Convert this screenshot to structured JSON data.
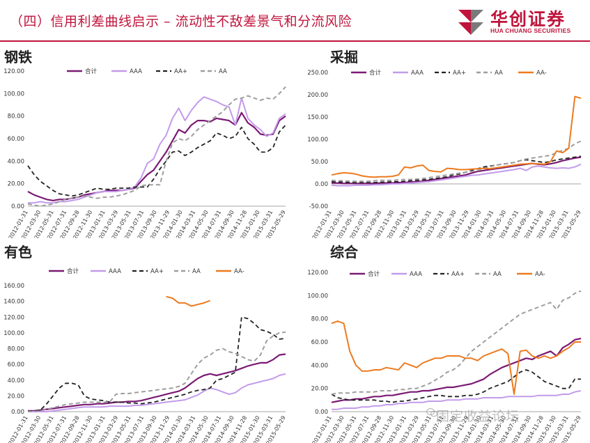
{
  "header": {
    "title": "（四）信用利差曲线启示 – 流动性不敌差景气和分流风险"
  },
  "logo": {
    "cn": "华创证券",
    "en": "HUA CHUANG SECURITIES",
    "color": "#c0143c"
  },
  "watermark": {
    "text": "固定收益论坛"
  },
  "series_styles": {
    "合计": {
      "color": "#7b1a73",
      "dash": "",
      "width": 2.2
    },
    "AAA": {
      "color": "#c39bea",
      "dash": "",
      "width": 2.0
    },
    "AA+": {
      "color": "#222222",
      "dash": "6,4",
      "width": 1.8
    },
    "AA": {
      "color": "#9e9e9e",
      "dash": "6,4",
      "width": 2.0
    },
    "AA-": {
      "color": "#ec7a1e",
      "dash": "",
      "width": 2.0
    }
  },
  "x_ticks": [
    "2012-01-31",
    "2012-03-30",
    "2012-05-31",
    "2012-07-31",
    "2012-09-28",
    "2012-11-30",
    "2013-01-31",
    "2013-03-29",
    "2013-05-31",
    "2013-07-31",
    "2013-09-30",
    "2013-11-29",
    "2014-01-30",
    "2014-03-31",
    "2014-05-30",
    "2014-07-31",
    "2014-09-30",
    "2014-11-28",
    "2015-01-30",
    "2015-03-31",
    "2015-05-29"
  ],
  "chart_data": [
    {
      "type": "line",
      "title": "钢铁",
      "ylim": [
        0,
        120
      ],
      "yticks": [
        "0.00",
        "20.00",
        "40.00",
        "60.00",
        "80.00",
        "100.00",
        "120.00"
      ],
      "legend": [
        "合计",
        "AAA",
        "AA+",
        "AA"
      ],
      "categories_count": 42,
      "series": [
        {
          "name": "合计",
          "values": [
            13,
            10,
            8,
            6,
            5,
            6,
            6,
            7,
            8,
            10,
            11,
            12,
            13,
            14,
            14,
            14,
            15,
            16,
            22,
            28,
            32,
            40,
            48,
            58,
            68,
            65,
            72,
            76,
            76,
            75,
            78,
            77,
            76,
            72,
            83,
            74,
            70,
            64,
            63,
            64,
            76,
            80
          ]
        },
        {
          "name": "AAA",
          "values": [
            3,
            3,
            4,
            3,
            3,
            4,
            4,
            5,
            6,
            8,
            10,
            12,
            13,
            13,
            13,
            14,
            15,
            17,
            25,
            38,
            42,
            55,
            63,
            78,
            87,
            76,
            85,
            92,
            97,
            95,
            93,
            90,
            88,
            72,
            96,
            78,
            72,
            68,
            62,
            65,
            78,
            82
          ]
        },
        {
          "name": "AA+",
          "values": [
            36,
            28,
            22,
            18,
            14,
            11,
            10,
            9,
            10,
            12,
            14,
            16,
            15,
            15,
            16,
            16,
            16,
            17,
            17,
            17,
            24,
            33,
            40,
            48,
            49,
            45,
            48,
            52,
            55,
            58,
            65,
            63,
            60,
            62,
            70,
            60,
            55,
            48,
            48,
            52,
            66,
            72
          ]
        },
        {
          "name": "AA",
          "values": [
            2,
            1,
            0,
            1,
            2,
            4,
            6,
            7,
            8,
            9,
            8,
            7,
            8,
            8,
            9,
            10,
            12,
            14,
            18,
            19,
            19,
            19,
            40,
            56,
            60,
            58,
            62,
            68,
            72,
            76,
            80,
            84,
            90,
            95,
            96,
            98,
            96,
            94,
            96,
            95,
            100,
            106
          ]
        }
      ]
    },
    {
      "type": "line",
      "title": "采掘",
      "ylim": [
        -50,
        250
      ],
      "yticks": [
        "-50.00",
        "0.00",
        "50.00",
        "100.00",
        "150.00",
        "200.00",
        "250.00"
      ],
      "legend": [
        "合计",
        "AAA",
        "AA+",
        "AA",
        "AA-"
      ],
      "categories_count": 42,
      "series": [
        {
          "name": "合计",
          "values": [
            2,
            2,
            1,
            1,
            1,
            1,
            1,
            1,
            2,
            2,
            2,
            3,
            3,
            4,
            5,
            6,
            8,
            10,
            12,
            14,
            16,
            18,
            20,
            24,
            28,
            30,
            32,
            34,
            36,
            38,
            40,
            42,
            44,
            46,
            44,
            43,
            45,
            48,
            52,
            55,
            58,
            60
          ]
        },
        {
          "name": "AAA",
          "values": [
            -3,
            -4,
            -4,
            -4,
            -3,
            -3,
            -3,
            -2,
            -2,
            -1,
            0,
            0,
            1,
            2,
            3,
            4,
            5,
            7,
            9,
            11,
            13,
            15,
            17,
            19,
            20,
            22,
            24,
            26,
            28,
            30,
            32,
            35,
            30,
            38,
            40,
            38,
            36,
            35,
            36,
            35,
            38,
            44
          ]
        },
        {
          "name": "AA+",
          "values": [
            5,
            4,
            4,
            3,
            3,
            3,
            3,
            3,
            4,
            4,
            5,
            5,
            6,
            7,
            8,
            9,
            10,
            12,
            14,
            16,
            20,
            22,
            26,
            30,
            34,
            38,
            40,
            42,
            44,
            46,
            48,
            52,
            54,
            52,
            50,
            48,
            50,
            54,
            56,
            58,
            60,
            62
          ]
        },
        {
          "name": "AA",
          "values": [
            8,
            7,
            7,
            6,
            6,
            6,
            6,
            7,
            8,
            8,
            8,
            9,
            10,
            10,
            11,
            12,
            14,
            16,
            18,
            20,
            22,
            24,
            26,
            28,
            30,
            34,
            38,
            42,
            44,
            46,
            48,
            52,
            56,
            58,
            60,
            62,
            64,
            70,
            75,
            80,
            90,
            96
          ]
        },
        {
          "name": "AA-",
          "values": [
            20,
            23,
            25,
            24,
            22,
            18,
            16,
            15,
            16,
            16,
            17,
            20,
            38,
            36,
            40,
            42,
            30,
            28,
            27,
            35,
            34,
            32,
            32,
            33,
            34,
            35,
            34,
            36,
            38,
            40,
            42,
            44,
            45,
            46,
            45,
            44,
            50,
            74,
            70,
            80,
            196,
            192
          ]
        }
      ]
    },
    {
      "type": "line",
      "title": "有色",
      "ylim": [
        0,
        160
      ],
      "yticks": [
        "0.00",
        "20.00",
        "40.00",
        "60.00",
        "80.00",
        "100.00",
        "120.00",
        "140.00",
        "160.00"
      ],
      "legend": [
        "合计",
        "AAA",
        "AA+",
        "AA",
        "AA-"
      ],
      "categories_count": 42,
      "series": [
        {
          "name": "合计",
          "values": [
            1,
            1,
            2,
            3,
            4,
            5,
            6,
            7,
            8,
            9,
            9,
            10,
            10,
            11,
            12,
            12,
            13,
            13,
            14,
            16,
            18,
            20,
            22,
            24,
            26,
            30,
            36,
            42,
            46,
            48,
            46,
            48,
            50,
            52,
            55,
            58,
            60,
            62,
            62,
            66,
            72,
            73
          ]
        },
        {
          "name": "AAA",
          "values": [
            0,
            0,
            0,
            0,
            1,
            2,
            3,
            4,
            5,
            6,
            6,
            6,
            6,
            7,
            7,
            7,
            7,
            8,
            8,
            9,
            10,
            11,
            12,
            13,
            14,
            15,
            18,
            21,
            26,
            30,
            28,
            25,
            22,
            24,
            30,
            34,
            36,
            38,
            40,
            42,
            46,
            48
          ]
        },
        {
          "name": "AA+",
          "values": [
            0,
            1,
            2,
            10,
            20,
            30,
            36,
            36,
            34,
            20,
            16,
            15,
            14,
            12,
            12,
            12,
            11,
            11,
            10,
            11,
            12,
            14,
            16,
            18,
            20,
            22,
            25,
            27,
            28,
            30,
            40,
            42,
            46,
            50,
            120,
            118,
            112,
            104,
            102,
            98,
            92,
            93
          ]
        },
        {
          "name": "AA",
          "values": [
            0,
            0,
            1,
            3,
            5,
            7,
            9,
            10,
            11,
            12,
            12,
            12,
            12,
            12,
            22,
            23,
            23,
            24,
            25,
            26,
            27,
            28,
            29,
            30,
            32,
            36,
            48,
            60,
            68,
            72,
            78,
            80,
            76,
            74,
            70,
            66,
            64,
            72,
            90,
            96,
            100,
            101
          ]
        },
        {
          "name": "AA-",
          "values": [
            null,
            null,
            null,
            null,
            null,
            null,
            null,
            null,
            null,
            null,
            null,
            null,
            null,
            null,
            null,
            null,
            null,
            null,
            null,
            null,
            null,
            null,
            146,
            144,
            138,
            138,
            134,
            136,
            138,
            141,
            null,
            null,
            null,
            null,
            null,
            null,
            null,
            null,
            null,
            null,
            null,
            null
          ]
        }
      ]
    },
    {
      "type": "line",
      "title": "综合",
      "ylim": [
        0,
        120
      ],
      "yticks": [
        "0.00",
        "20.00",
        "40.00",
        "60.00",
        "80.00",
        "100.00",
        "120.00"
      ],
      "legend": [
        "合计",
        "AAA",
        "AA+",
        "AA",
        "AA-"
      ],
      "categories_count": 42,
      "series": [
        {
          "name": "合计",
          "values": [
            8,
            9,
            10,
            10,
            11,
            11,
            12,
            13,
            13,
            14,
            14,
            15,
            16,
            17,
            17,
            18,
            18,
            19,
            20,
            21,
            21,
            22,
            23,
            24,
            26,
            28,
            32,
            35,
            38,
            40,
            42,
            44,
            46,
            45,
            48,
            50,
            52,
            48,
            55,
            58,
            62,
            63
          ]
        },
        {
          "name": "AAA",
          "values": [
            2,
            2,
            3,
            3,
            3,
            4,
            4,
            5,
            5,
            6,
            6,
            7,
            7,
            8,
            8,
            8,
            9,
            9,
            9,
            10,
            10,
            10,
            11,
            11,
            11,
            12,
            12,
            12,
            12,
            13,
            13,
            13,
            13,
            13,
            14,
            14,
            14,
            14,
            15,
            15,
            17,
            18
          ]
        },
        {
          "name": "AA+",
          "values": [
            15,
            12,
            11,
            10,
            10,
            10,
            10,
            10,
            9,
            9,
            8,
            9,
            9,
            10,
            11,
            12,
            13,
            14,
            14,
            13,
            13,
            13,
            14,
            14,
            15,
            17,
            20,
            22,
            24,
            26,
            30,
            34,
            36,
            34,
            30,
            26,
            24,
            22,
            20,
            20,
            28,
            28
          ]
        },
        {
          "name": "AA",
          "values": [
            15,
            16,
            16,
            16,
            17,
            17,
            17,
            17,
            18,
            18,
            18,
            19,
            19,
            20,
            20,
            22,
            24,
            27,
            30,
            34,
            36,
            40,
            46,
            52,
            56,
            60,
            64,
            68,
            72,
            76,
            80,
            84,
            86,
            88,
            90,
            92,
            94,
            88,
            96,
            98,
            102,
            104
          ]
        },
        {
          "name": "AA-",
          "values": [
            76,
            78,
            76,
            52,
            40,
            35,
            35,
            36,
            36,
            38,
            37,
            36,
            42,
            40,
            38,
            42,
            44,
            46,
            46,
            48,
            48,
            48,
            46,
            46,
            44,
            48,
            50,
            52,
            54,
            50,
            15,
            52,
            53,
            48,
            46,
            48,
            46,
            48,
            52,
            55,
            60,
            60
          ]
        }
      ]
    }
  ]
}
